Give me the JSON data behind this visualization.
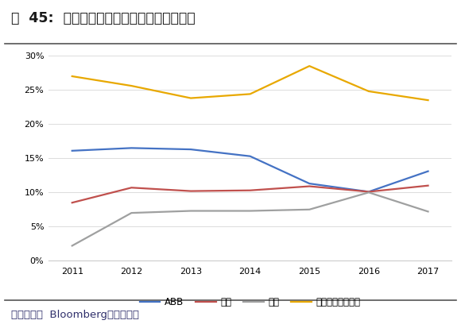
{
  "title": "图  45:  四大家族机器人业务营业利润率对比",
  "years": [
    2011,
    2012,
    2013,
    2014,
    2015,
    2016,
    2017
  ],
  "ABB": [
    0.161,
    0.165,
    0.163,
    0.153,
    0.113,
    0.101,
    0.131
  ],
  "kuka": [
    0.085,
    0.107,
    0.102,
    0.103,
    0.109,
    0.101,
    0.11
  ],
  "yaskawa": [
    0.022,
    0.07,
    0.073,
    0.073,
    0.075,
    0.1,
    0.072
  ],
  "fanuc": [
    0.27,
    0.256,
    0.238,
    0.244,
    0.285,
    0.248,
    0.235
  ],
  "ABB_color": "#4472C4",
  "kuka_color": "#C0504D",
  "yaskawa_color": "#9FA0A0",
  "fanuc_color": "#E8A800",
  "ylim": [
    0,
    0.3
  ],
  "yticks": [
    0,
    0.05,
    0.1,
    0.15,
    0.2,
    0.25,
    0.3
  ],
  "source_text": "数据来源：  Bloomberg，东北证券",
  "legend_labels": [
    "ABB",
    "库卡",
    "安川",
    "发那科（净利率）"
  ],
  "bg_color": "#FFFFFF",
  "grid_color": "#DCDCDC"
}
